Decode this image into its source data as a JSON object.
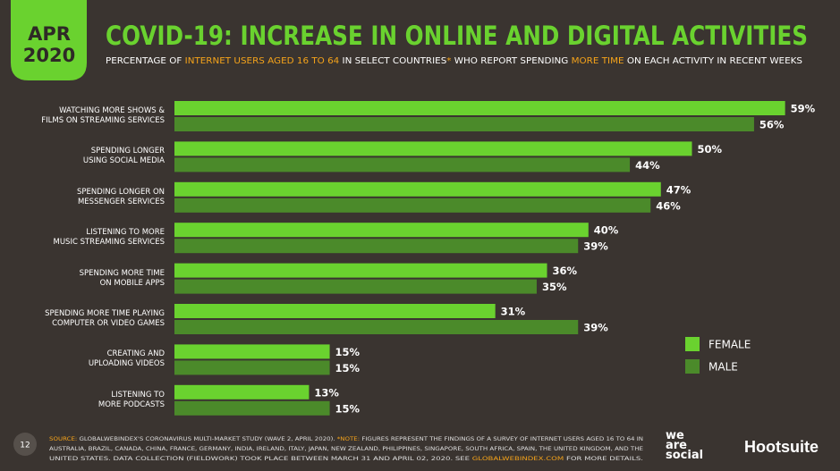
{
  "header": {
    "badge": [
      "APR",
      "2020"
    ],
    "title": "COVID-19: INCREASE IN ONLINE AND DIGITAL ACTIVITIES",
    "subtitle": [
      {
        "text": "PERCENTAGE OF "
      },
      {
        "text": "INTERNET USERS AGED 16 TO 64",
        "color": "#f5a31a"
      },
      {
        "text": " IN SELECT COUNTRIES"
      },
      {
        "text": "*",
        "color": "#f5a31a"
      },
      {
        "text": " WHO REPORT SPENDING "
      },
      {
        "text": "MORE TIME",
        "color": "#f5a31a"
      },
      {
        "text": " ON EACH ACTIVITY IN RECENT WEEKS"
      }
    ]
  },
  "chart_data": {
    "type": "hbar",
    "categories": [
      "WATCHING MORE SHOWS &\nFILMS ON STREAMING SERVICES",
      "SPENDING LONGER\nUSING SOCIAL MEDIA",
      "SPENDING LONGER ON\nMESSENGER SERVICES",
      "LISTENING TO MORE\nMUSIC STREAMING SERVICES",
      "SPENDING MORE TIME\nON MOBILE APPS",
      "SPENDING MORE TIME PLAYING\nCOMPUTER OR VIDEO GAMES",
      "CREATING AND\nUPLOADING VIDEOS",
      "LISTENING TO\nMORE PODCASTS"
    ],
    "series": [
      {
        "name": "FEMALE",
        "color": "#6ad22f",
        "values": [
          59,
          50,
          47,
          40,
          36,
          31,
          15,
          13
        ],
        "value_labels": [
          "59%",
          "50%",
          "47%",
          "40%",
          "36%",
          "31%",
          "15%",
          "13%"
        ]
      },
      {
        "name": "MALE",
        "color": "#4b8a2a",
        "values": [
          56,
          44,
          46,
          39,
          35,
          39,
          15,
          15
        ],
        "value_labels": [
          "56%",
          "44%",
          "46%",
          "39%",
          "35%",
          "39%",
          "15%",
          "15%"
        ]
      }
    ],
    "legend": "lower right"
  },
  "footer": {
    "page": "12",
    "lines": [
      [
        {
          "text": "SOURCE:",
          "color": "#f5a31a"
        },
        {
          "text": " GLOBALWEBINDEX'S CORONAVIRUS MULTI-MARKET STUDY (WAVE 2, APRIL 2020). "
        },
        {
          "text": "*NOTE:",
          "color": "#f5a31a"
        },
        {
          "text": " FIGURES REPRESENT THE FINDINGS OF A SURVEY OF INTERNET USERS AGED 16 TO 64 IN"
        }
      ],
      [
        {
          "text": "AUSTRALIA, BRAZIL, CANADA, CHINA, FRANCE, GERMANY, INDIA, IRELAND, ITALY, JAPAN, NEW ZEALAND, PHILIPPINES, SINGAPORE, SOUTH AFRICA, SPAIN, THE UNITED KINGDOM, AND THE"
        }
      ],
      [
        {
          "text": "UNITED STATES. DATA COLLECTION (FIELDWORK) TOOK PLACE BETWEEN MARCH 31 AND APRIL 02, 2020. SEE "
        },
        {
          "text": "GLOBALWEBINDEX.COM",
          "color": "#f5a31a"
        },
        {
          "text": " FOR MORE DETAILS."
        }
      ]
    ],
    "logos": [
      "we\nare\nsocial",
      "Hootsuite"
    ]
  }
}
